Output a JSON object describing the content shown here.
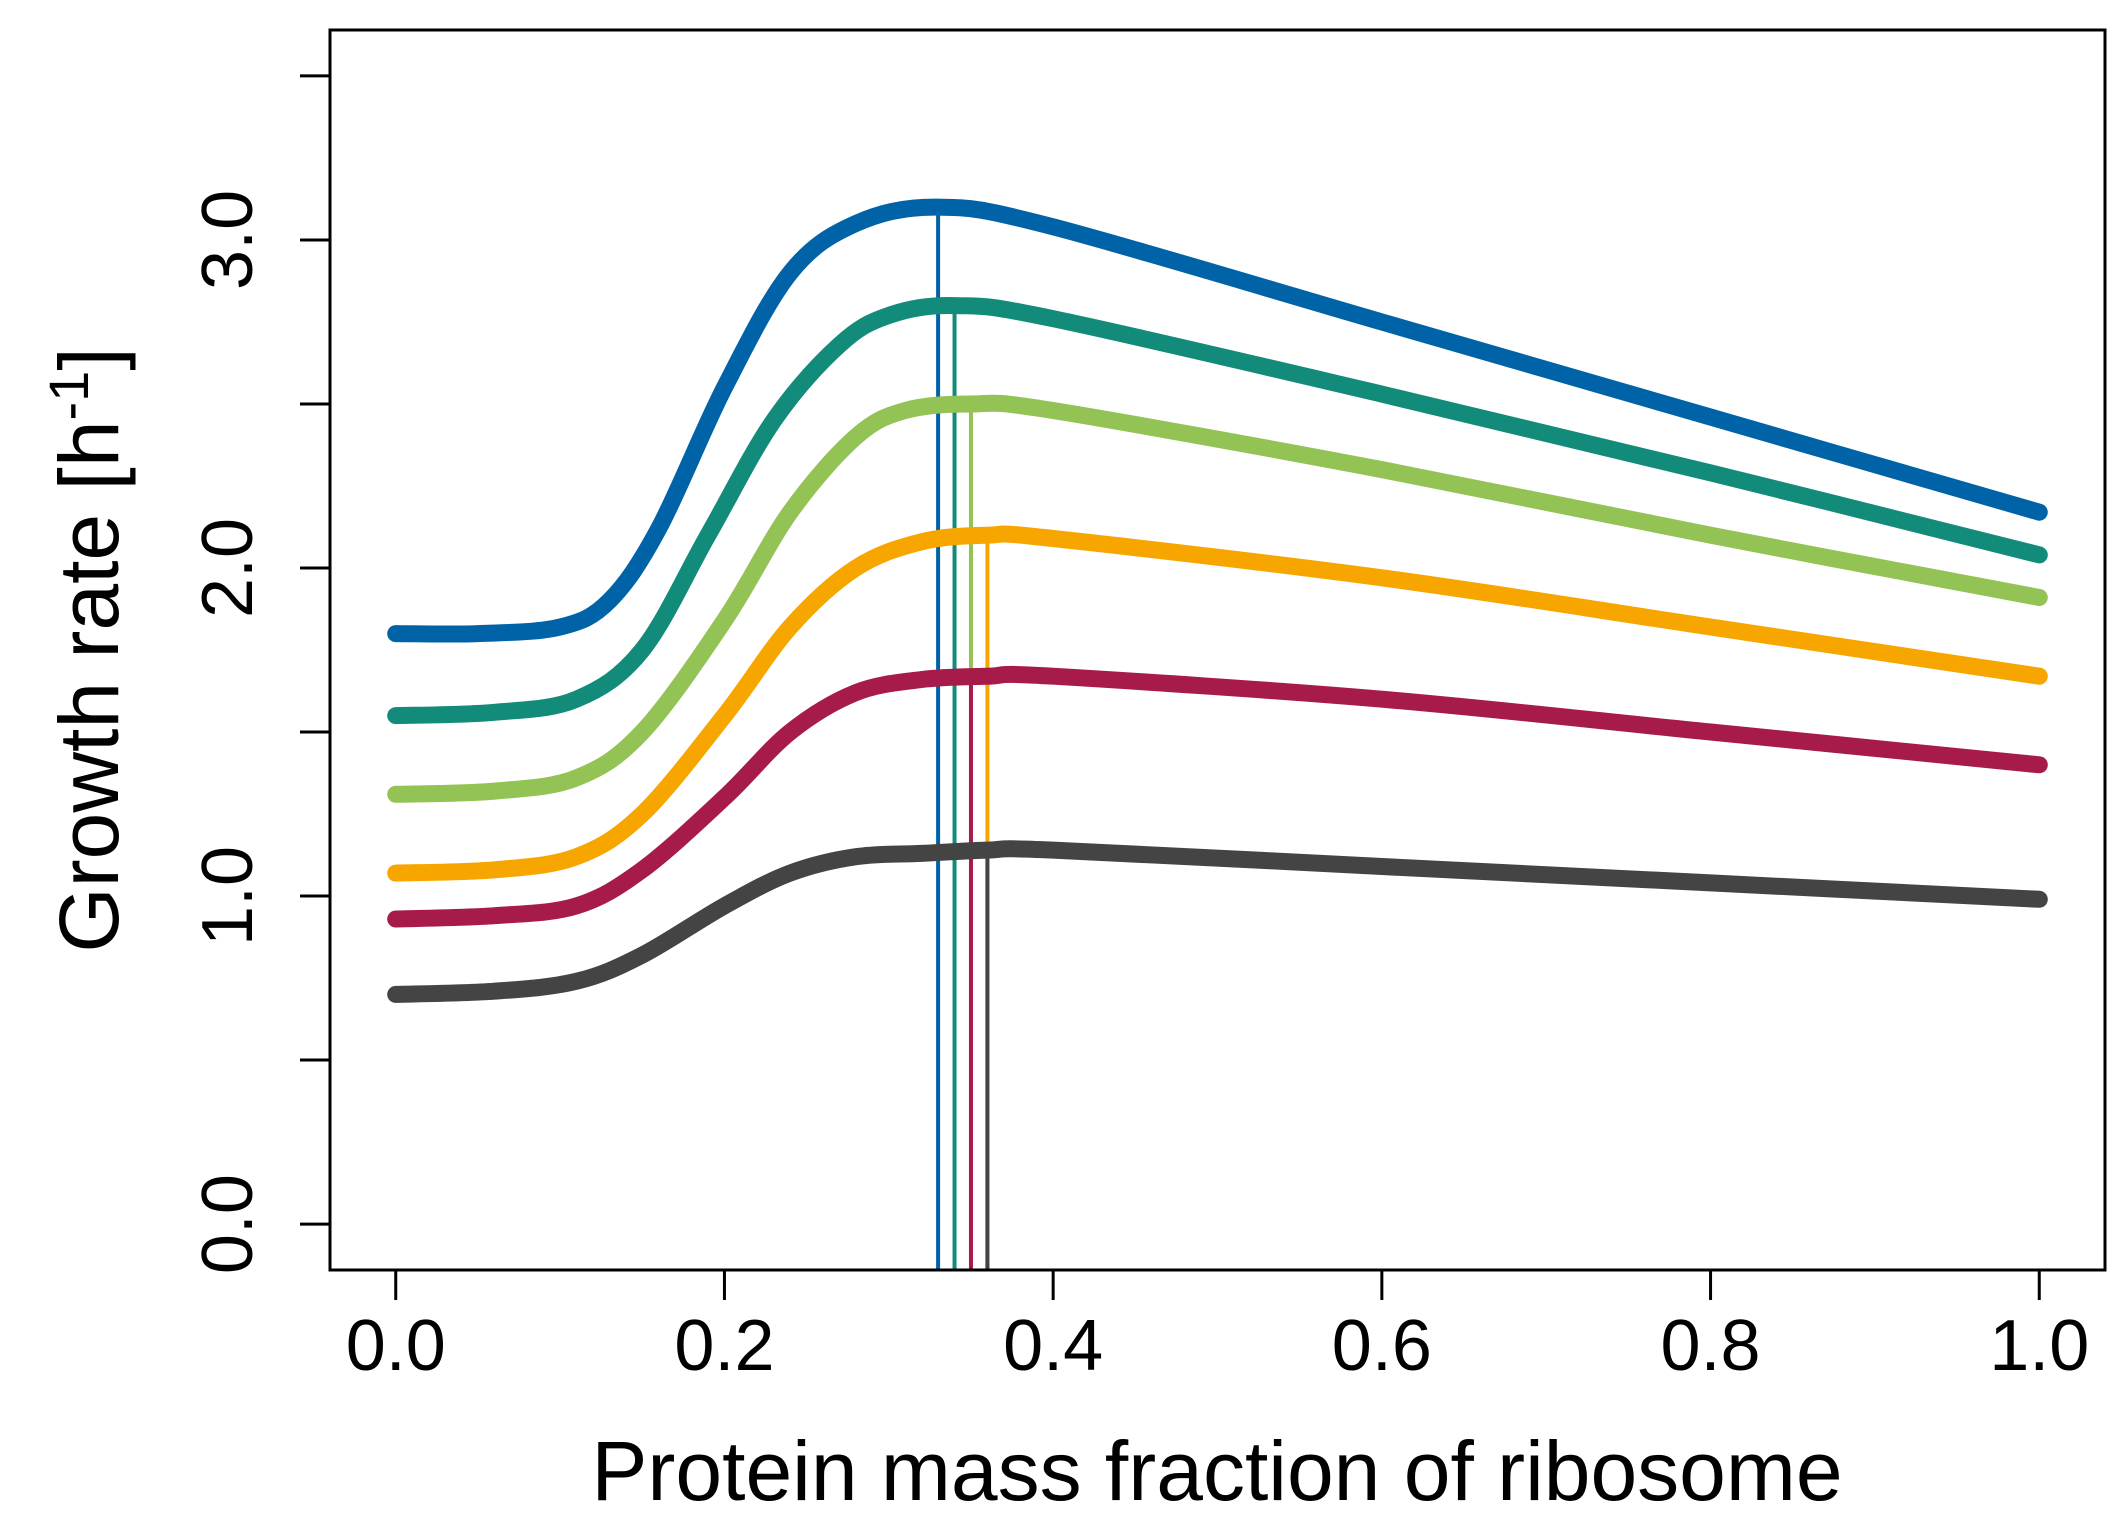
{
  "chart_data": {
    "type": "line",
    "xlabel": "Protein mass fraction of ribosome",
    "ylabel_main": "Growth rate [h",
    "ylabel_sup": "-1",
    "ylabel_close": "]",
    "xlim": [
      -0.04,
      1.04
    ],
    "ylim": [
      -0.14,
      3.64
    ],
    "xticks": [
      0.0,
      0.2,
      0.4,
      0.6,
      0.8,
      1.0
    ],
    "xtick_labels": [
      "0.0",
      "0.2",
      "0.4",
      "0.6",
      "0.8",
      "1.0"
    ],
    "yticks": [
      0.0,
      0.5,
      1.0,
      1.5,
      2.0,
      2.5,
      3.0,
      3.5
    ],
    "ytick_labels": [
      "0.0",
      "",
      "1.0",
      "",
      "2.0",
      "",
      "3.0",
      ""
    ],
    "grid": false,
    "series": [
      {
        "color": "#0063a7",
        "optimum_x": 0.33,
        "points": [
          [
            0.0,
            1.8
          ],
          [
            0.05,
            1.8
          ],
          [
            0.1,
            1.82
          ],
          [
            0.13,
            1.9
          ],
          [
            0.16,
            2.12
          ],
          [
            0.2,
            2.55
          ],
          [
            0.24,
            2.9
          ],
          [
            0.28,
            3.05
          ],
          [
            0.33,
            3.1
          ],
          [
            0.4,
            3.04
          ],
          [
            0.6,
            2.75
          ],
          [
            0.8,
            2.46
          ],
          [
            1.0,
            2.17
          ]
        ]
      },
      {
        "color": "#138b7a",
        "optimum_x": 0.34,
        "points": [
          [
            0.0,
            1.55
          ],
          [
            0.06,
            1.56
          ],
          [
            0.11,
            1.6
          ],
          [
            0.15,
            1.75
          ],
          [
            0.19,
            2.1
          ],
          [
            0.23,
            2.45
          ],
          [
            0.27,
            2.68
          ],
          [
            0.3,
            2.77
          ],
          [
            0.34,
            2.8
          ],
          [
            0.4,
            2.76
          ],
          [
            0.6,
            2.53
          ],
          [
            0.8,
            2.29
          ],
          [
            1.0,
            2.04
          ]
        ]
      },
      {
        "color": "#93c255",
        "optimum_x": 0.35,
        "points": [
          [
            0.0,
            1.31
          ],
          [
            0.06,
            1.32
          ],
          [
            0.11,
            1.36
          ],
          [
            0.15,
            1.5
          ],
          [
            0.2,
            1.84
          ],
          [
            0.24,
            2.17
          ],
          [
            0.28,
            2.4
          ],
          [
            0.31,
            2.48
          ],
          [
            0.35,
            2.5
          ],
          [
            0.4,
            2.48
          ],
          [
            0.6,
            2.3
          ],
          [
            0.8,
            2.1
          ],
          [
            1.0,
            1.91
          ]
        ]
      },
      {
        "color": "#f7a600",
        "optimum_x": 0.36,
        "points": [
          [
            0.0,
            1.07
          ],
          [
            0.06,
            1.08
          ],
          [
            0.11,
            1.12
          ],
          [
            0.15,
            1.25
          ],
          [
            0.2,
            1.55
          ],
          [
            0.24,
            1.82
          ],
          [
            0.28,
            2.0
          ],
          [
            0.32,
            2.08
          ],
          [
            0.36,
            2.1
          ],
          [
            0.4,
            2.09
          ],
          [
            0.6,
            1.97
          ],
          [
            0.8,
            1.82
          ],
          [
            1.0,
            1.67
          ]
        ]
      },
      {
        "color": "#a71b4a",
        "optimum_x": 0.35,
        "points": [
          [
            0.0,
            0.93
          ],
          [
            0.06,
            0.94
          ],
          [
            0.11,
            0.97
          ],
          [
            0.15,
            1.08
          ],
          [
            0.2,
            1.3
          ],
          [
            0.24,
            1.5
          ],
          [
            0.28,
            1.62
          ],
          [
            0.32,
            1.66
          ],
          [
            0.36,
            1.67
          ],
          [
            0.4,
            1.67
          ],
          [
            0.6,
            1.6
          ],
          [
            0.8,
            1.5
          ],
          [
            1.0,
            1.4
          ]
        ]
      },
      {
        "color": "#444444",
        "optimum_x": 0.36,
        "points": [
          [
            0.0,
            0.7
          ],
          [
            0.06,
            0.71
          ],
          [
            0.11,
            0.74
          ],
          [
            0.15,
            0.82
          ],
          [
            0.2,
            0.97
          ],
          [
            0.24,
            1.07
          ],
          [
            0.28,
            1.12
          ],
          [
            0.32,
            1.13
          ],
          [
            0.36,
            1.14
          ],
          [
            0.4,
            1.14
          ],
          [
            0.6,
            1.09
          ],
          [
            0.8,
            1.04
          ],
          [
            1.0,
            0.99
          ]
        ]
      }
    ]
  }
}
